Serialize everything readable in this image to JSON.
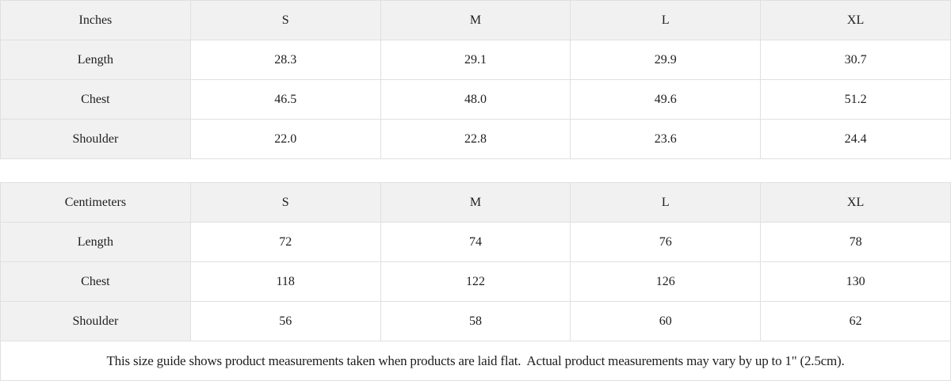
{
  "tables": [
    {
      "unit": "Inches",
      "header": [
        "Inches",
        "S",
        "M",
        "L",
        "XL"
      ],
      "rows": [
        [
          "Length",
          "28.3",
          "29.1",
          "29.9",
          "30.7"
        ],
        [
          "Chest",
          "46.5",
          "48.0",
          "49.6",
          "51.2"
        ],
        [
          "Shoulder",
          "22.0",
          "22.8",
          "23.6",
          "24.4"
        ]
      ]
    },
    {
      "unit": "Centimeters",
      "header": [
        "Centimeters",
        "S",
        "M",
        "L",
        "XL"
      ],
      "rows": [
        [
          "Length",
          "72",
          "74",
          "76",
          "78"
        ],
        [
          "Chest",
          "118",
          "122",
          "126",
          "130"
        ],
        [
          "Shoulder",
          "56",
          "58",
          "60",
          "62"
        ]
      ]
    }
  ],
  "footer_note": "This size guide shows product measurements taken when products are laid flat.  Actual product measurements may vary by up to 1\" (2.5cm).",
  "colors": {
    "header_bg": "#f1f1f1",
    "border": "#e0e0e0",
    "text": "#1e1e1e",
    "background": "#ffffff"
  },
  "chart_data": [
    {
      "type": "table",
      "title": "Inches",
      "columns": [
        "Inches",
        "S",
        "M",
        "L",
        "XL"
      ],
      "rows": [
        [
          "Length",
          28.3,
          29.1,
          29.9,
          30.7
        ],
        [
          "Chest",
          46.5,
          48.0,
          49.6,
          51.2
        ],
        [
          "Shoulder",
          22.0,
          22.8,
          23.6,
          24.4
        ]
      ]
    },
    {
      "type": "table",
      "title": "Centimeters",
      "columns": [
        "Centimeters",
        "S",
        "M",
        "L",
        "XL"
      ],
      "rows": [
        [
          "Length",
          72,
          74,
          76,
          78
        ],
        [
          "Chest",
          118,
          122,
          126,
          130
        ],
        [
          "Shoulder",
          56,
          58,
          60,
          62
        ]
      ]
    }
  ]
}
